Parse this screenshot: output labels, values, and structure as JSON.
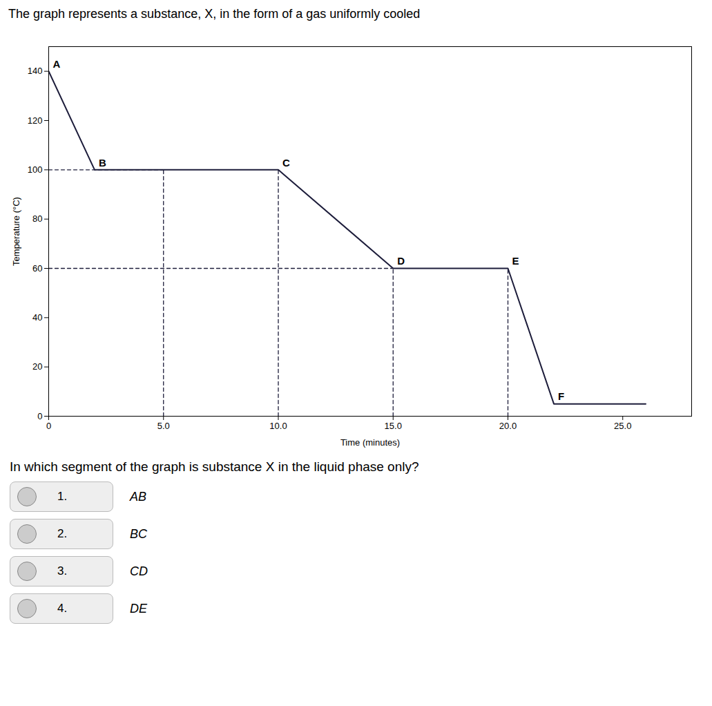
{
  "chart_data": {
    "type": "line",
    "title": "The graph represents a substance, X, in the form of a gas uniformly cooled",
    "xlabel": "Time (minutes)",
    "ylabel": "Temperature (°C)",
    "x": [
      0,
      2,
      5,
      10,
      15,
      20,
      22,
      26
    ],
    "values": [
      140,
      100,
      100,
      100,
      60,
      60,
      5,
      5
    ],
    "color": "#1c1c3a",
    "xlim": [
      0,
      28
    ],
    "ylim": [
      0,
      150
    ],
    "xticks": [
      0,
      {
        "value": 5,
        "label": "5.0"
      },
      {
        "value": 10,
        "label": "10.0"
      },
      {
        "value": 15,
        "label": "15.0"
      },
      {
        "value": 20,
        "label": "20.0"
      },
      {
        "value": 25,
        "label": "25.0"
      }
    ],
    "yticks": [
      0,
      20,
      40,
      60,
      80,
      100,
      120,
      140
    ],
    "grid": false,
    "point_labels": [
      {
        "text": "A",
        "x": 0,
        "y": 140
      },
      {
        "text": "B",
        "x": 2,
        "y": 100
      },
      {
        "text": "C",
        "x": 10,
        "y": 100
      },
      {
        "text": "D",
        "x": 15,
        "y": 60
      },
      {
        "text": "E",
        "x": 20,
        "y": 60
      },
      {
        "text": "F",
        "x": 22,
        "y": 5
      }
    ],
    "reference_lines": [
      {
        "x": [
          0,
          5
        ],
        "y": [
          100,
          100
        ],
        "line_style": "dashed"
      },
      {
        "x": [
          0,
          15
        ],
        "y": [
          60,
          60
        ],
        "line_style": "dashed"
      },
      {
        "x": [
          5,
          5
        ],
        "y": [
          0,
          100
        ],
        "line_style": "dashed"
      },
      {
        "x": [
          10,
          10
        ],
        "y": [
          0,
          100
        ],
        "line_style": "dashed"
      },
      {
        "x": [
          15,
          15
        ],
        "y": [
          0,
          60
        ],
        "line_style": "dashed"
      },
      {
        "x": [
          20,
          20
        ],
        "y": [
          0,
          60
        ],
        "line_style": "dashed"
      }
    ],
    "question": "In which segment of the graph is substance X in the liquid phase only?",
    "option_numbers": [
      "1.",
      "2.",
      "3.",
      "4."
    ],
    "options": [
      "AB",
      "BC",
      "CD",
      "DE"
    ]
  }
}
